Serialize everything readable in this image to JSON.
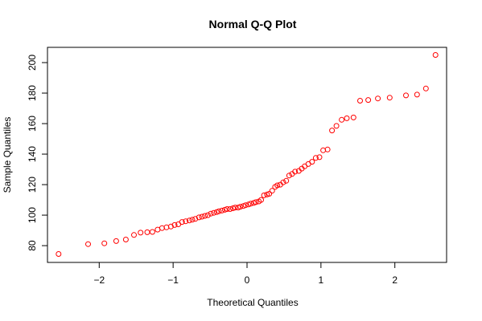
{
  "chart_data": {
    "type": "scatter",
    "title": "Normal Q-Q Plot",
    "xlabel": "Theoretical Quantiles",
    "ylabel": "Sample Quantiles",
    "xlim": [
      -2.7,
      2.7
    ],
    "ylim": [
      69,
      210
    ],
    "x_ticks": [
      -2,
      -1,
      0,
      1,
      2
    ],
    "x_tick_labels": [
      "−2",
      "−1",
      "0",
      "1",
      "2"
    ],
    "y_ticks": [
      80,
      100,
      120,
      140,
      160,
      180,
      200
    ],
    "y_tick_labels": [
      "80",
      "100",
      "120",
      "140",
      "160",
      "180",
      "200"
    ],
    "point_color": "#ff0000",
    "grid": false,
    "points": [
      [
        -2.55,
        74.5
      ],
      [
        -2.15,
        81.0
      ],
      [
        -1.93,
        81.5
      ],
      [
        -1.77,
        83.0
      ],
      [
        -1.64,
        84.0
      ],
      [
        -1.53,
        87.0
      ],
      [
        -1.44,
        88.5
      ],
      [
        -1.35,
        88.8
      ],
      [
        -1.28,
        89.0
      ],
      [
        -1.21,
        90.5
      ],
      [
        -1.15,
        91.5
      ],
      [
        -1.09,
        92.0
      ],
      [
        -1.03,
        92.5
      ],
      [
        -0.98,
        93.5
      ],
      [
        -0.93,
        94.0
      ],
      [
        -0.88,
        95.5
      ],
      [
        -0.83,
        96.0
      ],
      [
        -0.78,
        96.5
      ],
      [
        -0.74,
        97.0
      ],
      [
        -0.7,
        97.5
      ],
      [
        -0.65,
        98.5
      ],
      [
        -0.61,
        99.0
      ],
      [
        -0.57,
        99.5
      ],
      [
        -0.53,
        100.0
      ],
      [
        -0.49,
        101.0
      ],
      [
        -0.45,
        101.5
      ],
      [
        -0.41,
        102.0
      ],
      [
        -0.38,
        102.5
      ],
      [
        -0.34,
        103.0
      ],
      [
        -0.3,
        103.5
      ],
      [
        -0.27,
        104.0
      ],
      [
        -0.23,
        104.0
      ],
      [
        -0.19,
        104.5
      ],
      [
        -0.16,
        105.0
      ],
      [
        -0.12,
        105.0
      ],
      [
        -0.09,
        105.5
      ],
      [
        -0.05,
        106.0
      ],
      [
        -0.02,
        106.5
      ],
      [
        0.02,
        107.0
      ],
      [
        0.05,
        107.5
      ],
      [
        0.09,
        108.0
      ],
      [
        0.12,
        108.5
      ],
      [
        0.16,
        109.0
      ],
      [
        0.19,
        110.0
      ],
      [
        0.23,
        113.0
      ],
      [
        0.27,
        113.5
      ],
      [
        0.3,
        114.0
      ],
      [
        0.34,
        116.0
      ],
      [
        0.38,
        118.5
      ],
      [
        0.41,
        119.5
      ],
      [
        0.45,
        120.0
      ],
      [
        0.49,
        121.5
      ],
      [
        0.53,
        122.5
      ],
      [
        0.57,
        126.0
      ],
      [
        0.61,
        127.0
      ],
      [
        0.65,
        128.5
      ],
      [
        0.7,
        129.0
      ],
      [
        0.74,
        130.5
      ],
      [
        0.78,
        132.0
      ],
      [
        0.83,
        133.5
      ],
      [
        0.88,
        135.0
      ],
      [
        0.93,
        137.5
      ],
      [
        0.98,
        138.0
      ],
      [
        1.03,
        142.5
      ],
      [
        1.09,
        143.0
      ],
      [
        1.15,
        155.5
      ],
      [
        1.21,
        158.5
      ],
      [
        1.28,
        162.5
      ],
      [
        1.35,
        163.5
      ],
      [
        1.44,
        164.0
      ],
      [
        1.53,
        175.0
      ],
      [
        1.64,
        175.5
      ],
      [
        1.77,
        176.5
      ],
      [
        1.93,
        177.0
      ],
      [
        2.15,
        178.5
      ],
      [
        2.3,
        179.0
      ],
      [
        2.42,
        183.0
      ],
      [
        2.55,
        205.0
      ]
    ]
  }
}
